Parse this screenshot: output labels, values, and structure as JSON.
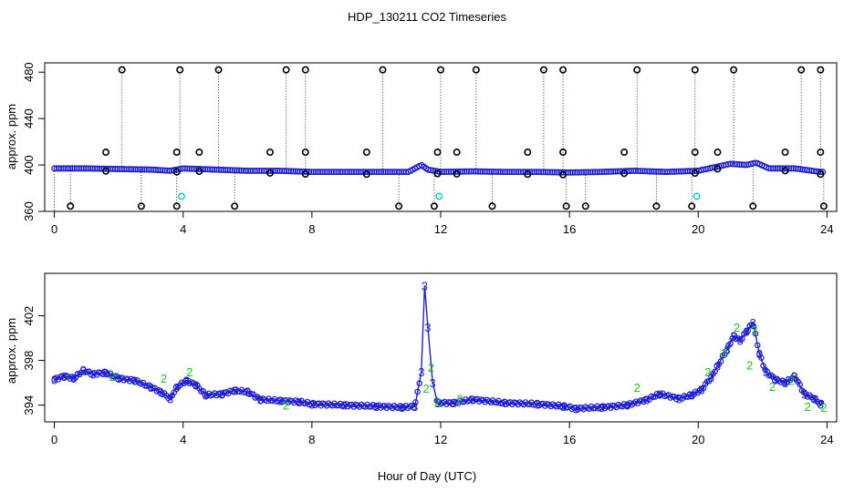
{
  "title": "HDP_130211  CO2 Timeseries",
  "xlabel": "Hour of Day (UTC)",
  "colors": {
    "primary": "#1f1fd0",
    "secondary": "#14c814",
    "outlier": "#000000",
    "alt": "#00c8c8"
  },
  "chart_data": [
    {
      "type": "scatter",
      "ylabel": "approx. ppm",
      "xlim": [
        -0.3,
        24.3
      ],
      "ylim": [
        360,
        488
      ],
      "xticks": [
        0,
        4,
        8,
        12,
        16,
        20,
        24
      ],
      "yticks": [
        360,
        400,
        440,
        480
      ],
      "xtick_labels": [
        "0",
        "4",
        "8",
        "12",
        "16",
        "20",
        "24"
      ],
      "ytick_labels": [
        "360",
        "400",
        "440",
        "480"
      ],
      "baseline": [
        [
          0,
          397
        ],
        [
          1,
          397
        ],
        [
          2,
          396.5
        ],
        [
          3,
          396
        ],
        [
          3.6,
          395
        ],
        [
          4,
          397
        ],
        [
          5,
          396
        ],
        [
          6,
          395
        ],
        [
          7,
          395
        ],
        [
          8,
          394
        ],
        [
          9,
          394
        ],
        [
          10,
          394
        ],
        [
          11,
          394
        ],
        [
          11.4,
          400
        ],
        [
          11.6,
          396
        ],
        [
          12,
          394
        ],
        [
          13,
          394.5
        ],
        [
          14,
          394
        ],
        [
          15,
          394
        ],
        [
          16,
          393.5
        ],
        [
          17,
          394
        ],
        [
          18,
          395
        ],
        [
          19,
          394
        ],
        [
          20,
          395
        ],
        [
          20.5,
          398
        ],
        [
          21,
          401
        ],
        [
          21.5,
          400
        ],
        [
          21.8,
          402
        ],
        [
          22.2,
          397
        ],
        [
          23,
          397
        ],
        [
          23.8,
          394
        ]
      ],
      "outliers_high": [
        2.1,
        3.9,
        5.1,
        7.2,
        7.8,
        10.2,
        12.0,
        13.1,
        15.2,
        15.8,
        18.1,
        19.9,
        21.1,
        23.2,
        23.8
      ],
      "outliers_low": [
        0.5,
        2.7,
        3.8,
        5.6,
        10.7,
        11.8,
        13.6,
        15.9,
        16.5,
        18.7,
        19.8,
        21.7,
        23.9
      ],
      "outliers_mid": [
        1.6,
        3.8,
        4.5,
        6.7,
        7.8,
        9.7,
        11.9,
        12.5,
        14.7,
        15.8,
        17.7,
        19.9,
        20.6,
        22.7,
        23.8
      ],
      "outliers_cyan": [
        3.95,
        11.95,
        19.95
      ]
    },
    {
      "type": "line",
      "ylabel": "approx. ppm",
      "xlim": [
        -0.3,
        24.3
      ],
      "ylim": [
        392.5,
        405.8
      ],
      "xticks": [
        0,
        4,
        8,
        12,
        16,
        20,
        24
      ],
      "yticks": [
        394,
        398,
        402
      ],
      "xtick_labels": [
        "0",
        "4",
        "8",
        "12",
        "16",
        "20",
        "24"
      ],
      "ytick_labels": [
        "394",
        "398",
        "402"
      ],
      "series": [
        {
          "marker": "3",
          "points": [
            [
              0,
              396.3
            ],
            [
              0.3,
              396.6
            ],
            [
              0.6,
              396.4
            ],
            [
              0.9,
              397.1
            ],
            [
              1.2,
              396.8
            ],
            [
              1.6,
              396.9
            ],
            [
              2.0,
              396.4
            ],
            [
              2.5,
              396.2
            ],
            [
              3.0,
              395.6
            ],
            [
              3.3,
              395.2
            ],
            [
              3.6,
              394.6
            ],
            [
              3.8,
              395.6
            ],
            [
              4.1,
              396.2
            ],
            [
              4.4,
              395.8
            ],
            [
              4.7,
              394.9
            ],
            [
              5.2,
              395.0
            ],
            [
              5.6,
              395.3
            ],
            [
              6.0,
              395.2
            ],
            [
              6.4,
              394.5
            ],
            [
              7.0,
              394.4
            ],
            [
              7.6,
              394.3
            ],
            [
              8.0,
              394.1
            ],
            [
              9.0,
              394.0
            ],
            [
              10.0,
              393.9
            ],
            [
              10.8,
              393.8
            ],
            [
              11.2,
              393.9
            ],
            [
              11.4,
              397.0
            ],
            [
              11.5,
              404.7
            ],
            [
              11.6,
              401.0
            ],
            [
              11.75,
              396.0
            ],
            [
              11.9,
              394.2
            ],
            [
              12.4,
              394.2
            ],
            [
              13.0,
              394.5
            ],
            [
              14.0,
              394.2
            ],
            [
              15.0,
              394.1
            ],
            [
              15.8,
              393.9
            ],
            [
              16.2,
              393.7
            ],
            [
              17.0,
              393.8
            ],
            [
              17.8,
              394.0
            ],
            [
              18.4,
              394.5
            ],
            [
              18.8,
              395.0
            ],
            [
              19.4,
              394.6
            ],
            [
              19.8,
              394.9
            ],
            [
              20.1,
              395.4
            ],
            [
              20.4,
              396.5
            ],
            [
              20.6,
              397.5
            ],
            [
              20.9,
              399.0
            ],
            [
              21.1,
              400.2
            ],
            [
              21.3,
              399.8
            ],
            [
              21.5,
              400.6
            ],
            [
              21.7,
              401.4
            ],
            [
              21.9,
              398.6
            ],
            [
              22.1,
              397.0
            ],
            [
              22.4,
              396.3
            ],
            [
              22.7,
              396.0
            ],
            [
              23.0,
              396.6
            ],
            [
              23.3,
              395.0
            ],
            [
              23.6,
              394.6
            ],
            [
              23.8,
              394.1
            ]
          ]
        },
        {
          "marker": "2",
          "points": [
            [
              1.8,
              396.6
            ],
            [
              3.4,
              396.4
            ],
            [
              4.2,
              397.0
            ],
            [
              7.2,
              394.0
            ],
            [
              11.55,
              395.5
            ],
            [
              11.7,
              397.4
            ],
            [
              11.9,
              394.3
            ],
            [
              12.6,
              394.6
            ],
            [
              18.1,
              395.6
            ],
            [
              20.3,
              397.0
            ],
            [
              20.8,
              398.7
            ],
            [
              21.2,
              401.0
            ],
            [
              21.6,
              397.6
            ],
            [
              21.75,
              400.8
            ],
            [
              22.3,
              395.7
            ],
            [
              22.9,
              396.2
            ],
            [
              23.4,
              393.9
            ],
            [
              23.9,
              393.8
            ]
          ]
        }
      ]
    }
  ]
}
